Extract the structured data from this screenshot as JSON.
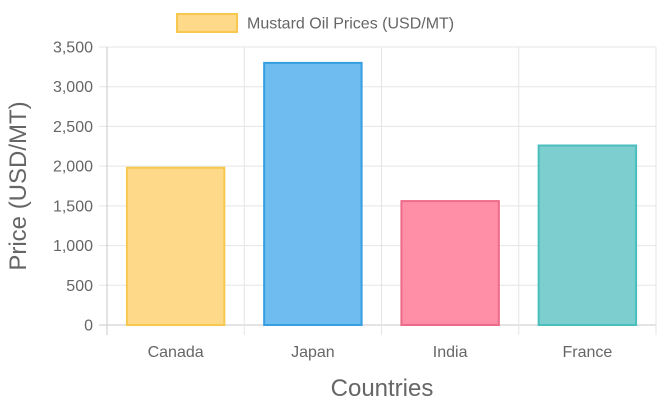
{
  "chart_data": {
    "type": "bar",
    "title": "",
    "categories": [
      "Canada",
      "Japan",
      "India",
      "France"
    ],
    "series": [
      {
        "name": "Mustard Oil Prices (USD/MT)",
        "values": [
          1980,
          3300,
          1560,
          2260
        ]
      }
    ],
    "bar_fill_colors": [
      "#fed98a",
      "#6ebcf0",
      "#ff8fa6",
      "#7dcfcf"
    ],
    "bar_border_colors": [
      "#f8c74e",
      "#379fe0",
      "#ee6a89",
      "#4bbdbd"
    ],
    "legend_swatch_fill": "#fed98a",
    "legend_swatch_border": "#f8c74e",
    "xlabel": "Countries",
    "ylabel": "Price (USD/MT)",
    "ylim": [
      0,
      3500
    ],
    "yticks": [
      "0",
      "500",
      "1,000",
      "1,500",
      "2,000",
      "2,500",
      "3,000",
      "3,500"
    ],
    "grid": true,
    "legend_position": "top"
  }
}
